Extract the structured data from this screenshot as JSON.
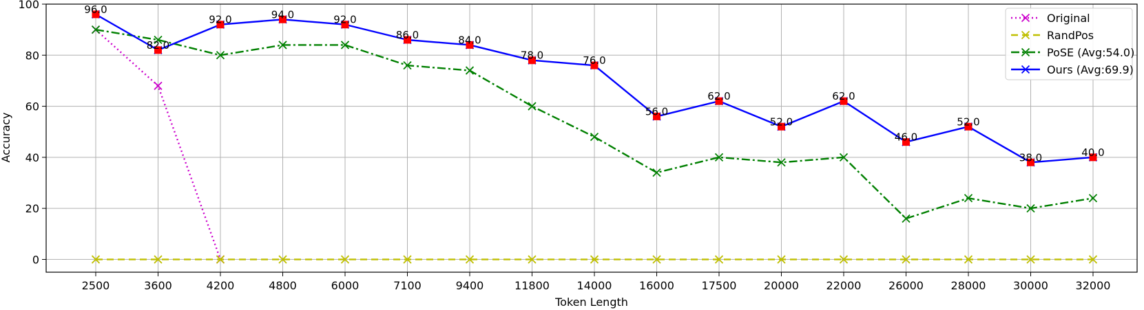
{
  "chart_data": {
    "type": "line",
    "xlabel": "Token Length",
    "ylabel": "Accuracy",
    "categories": [
      "2500",
      "3600",
      "4200",
      "4800",
      "6000",
      "7100",
      "9400",
      "11800",
      "14000",
      "16000",
      "17500",
      "20000",
      "22000",
      "26000",
      "28000",
      "30000",
      "32000"
    ],
    "yticks": [
      0,
      20,
      40,
      60,
      80,
      100
    ],
    "ylim": [
      -5,
      100
    ],
    "grid": true,
    "legend_position": "top-right",
    "series": [
      {
        "name": "Original",
        "color": "#cc00cc",
        "style": "dotted",
        "marker": "x",
        "values": [
          90,
          68,
          0,
          null,
          null,
          null,
          null,
          null,
          null,
          null,
          null,
          null,
          null,
          null,
          null,
          null,
          null
        ]
      },
      {
        "name": "RandPos",
        "color": "#bfbf00",
        "style": "dashed",
        "marker": "x",
        "values": [
          0,
          0,
          0,
          0,
          0,
          0,
          0,
          0,
          0,
          0,
          0,
          0,
          0,
          0,
          0,
          0,
          0
        ]
      },
      {
        "name": "PoSE (Avg:54.0)",
        "color": "#008000",
        "style": "dashdot",
        "marker": "x",
        "values": [
          90,
          86,
          80,
          84,
          84,
          76,
          74,
          60,
          48,
          34,
          40,
          38,
          40,
          16,
          24,
          20,
          24
        ]
      },
      {
        "name": "Ours (Avg:69.9)",
        "color": "#0000ff",
        "style": "solid",
        "marker": "x",
        "values": [
          96,
          82,
          92,
          94,
          92,
          86,
          84,
          78,
          76,
          56,
          62,
          52,
          62,
          46,
          52,
          38,
          40
        ]
      }
    ],
    "highlight_marker_color": "#ff0000",
    "data_labels": [
      "96.0",
      "82.0",
      "92.0",
      "94.0",
      "92.0",
      "86.0",
      "84.0",
      "78.0",
      "76.0",
      "56.0",
      "62.0",
      "52.0",
      "62.0",
      "46.0",
      "52.0",
      "38.0",
      "40.0"
    ]
  }
}
